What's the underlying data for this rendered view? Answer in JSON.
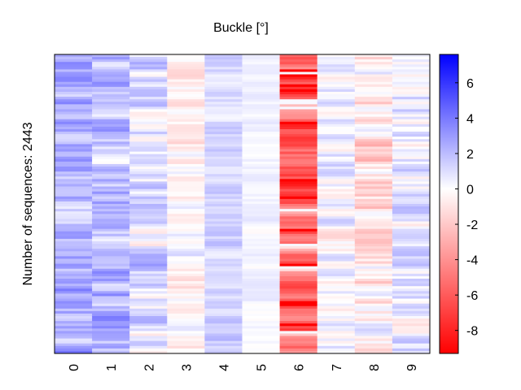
{
  "chart_data": {
    "type": "heatmap",
    "title": "Buckle [°]",
    "xlabel": "",
    "ylabel": "Number of sequences: 2443",
    "x_categories": [
      "0",
      "1",
      "2",
      "3",
      "4",
      "5",
      "6",
      "7",
      "8",
      "9"
    ],
    "colorbar": {
      "min": -9.3,
      "max": 7.6,
      "ticks": [
        6,
        4,
        2,
        0,
        -2,
        -4,
        -6,
        -8
      ],
      "tick_labels": [
        "6",
        "4",
        "2",
        "0",
        "-2",
        "-4",
        "-6",
        "-8"
      ],
      "colormap": [
        "#ff0000",
        "#ffffff",
        "#0000ff"
      ]
    },
    "column_bias": [
      2.2,
      2.0,
      0.9,
      -0.3,
      1.2,
      0.3,
      -5.5,
      0.3,
      -0.8,
      0.6
    ],
    "column_spread": [
      3.0,
      3.0,
      3.0,
      2.0,
      1.5,
      0.8,
      3.0,
      2.5,
      3.0,
      3.0
    ],
    "row_count": 2443,
    "grid": false
  }
}
